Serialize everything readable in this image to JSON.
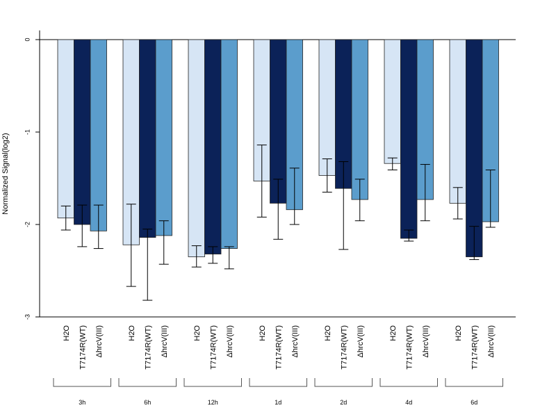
{
  "chart_data": {
    "type": "bar",
    "title": "",
    "xlabel": "",
    "ylabel": "Normalized Signal(log2)",
    "ylim": [
      -3,
      0.1
    ],
    "yticks": [
      0,
      -1,
      -2,
      -3
    ],
    "grid": false,
    "legend": "none",
    "groups": [
      "3h",
      "6h",
      "12h",
      "1d",
      "2d",
      "4d",
      "6d"
    ],
    "series": [
      {
        "name": "H2O",
        "color": "#d6e5f5",
        "values": [
          -1.93,
          -2.22,
          -2.35,
          -1.53,
          -1.47,
          -1.34,
          -1.77
        ],
        "err_low": [
          -2.06,
          -2.67,
          -2.46,
          -1.92,
          -1.65,
          -1.41,
          -1.94
        ],
        "err_high": [
          -1.8,
          -1.78,
          -2.23,
          -1.14,
          -1.29,
          -1.28,
          -1.6
        ]
      },
      {
        "name": "T7174R(WT)",
        "color": "#0b2258",
        "values": [
          -2.0,
          -2.14,
          -2.32,
          -1.77,
          -1.61,
          -2.15,
          -2.35
        ],
        "err_low": [
          -2.24,
          -2.82,
          -2.42,
          -2.16,
          -2.27,
          -2.18,
          -2.38
        ],
        "err_high": [
          -1.79,
          -2.05,
          -2.24,
          -1.51,
          -1.32,
          -2.06,
          -2.02
        ]
      },
      {
        "name": "ΔhrcV(III)",
        "color": "#5b9dcc",
        "values": [
          -2.07,
          -2.12,
          -2.26,
          -1.84,
          -1.73,
          -1.73,
          -1.97
        ],
        "err_low": [
          -2.26,
          -2.43,
          -2.48,
          -2.0,
          -1.96,
          -1.96,
          -2.03
        ],
        "err_high": [
          -1.79,
          -1.96,
          -2.24,
          -1.39,
          -1.51,
          -1.35,
          -1.41
        ]
      }
    ]
  }
}
